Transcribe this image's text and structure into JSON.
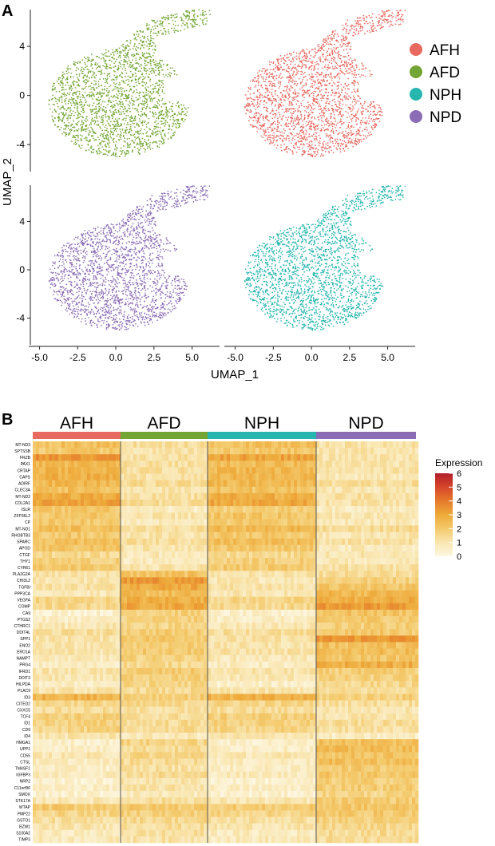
{
  "panel_a": {
    "letter": "A",
    "colors": {
      "AFH": "#e8695f",
      "AFD": "#73a534",
      "NPH": "#26b6ae",
      "NPD": "#8b6db5"
    }
  },
  "panel_b": {
    "letter": "B"
  },
  "chart_data": [
    {
      "type": "scatter",
      "xlabel": "UMAP_1",
      "ylabel": "UMAP_2",
      "x_ticks": [
        "-5.0",
        "-2.5",
        "0.0",
        "2.5",
        "5.0"
      ],
      "y_ticks": [
        "4",
        "0",
        "-4"
      ],
      "xlim": [
        -5.5,
        6.8
      ],
      "ylim": [
        -6.2,
        7.0
      ],
      "facets": [
        {
          "series": "AFD",
          "row": 0,
          "col": 0
        },
        {
          "series": "AFH",
          "row": 0,
          "col": 1
        },
        {
          "series": "NPD",
          "row": 1,
          "col": 0
        },
        {
          "series": "NPH",
          "row": 1,
          "col": 1
        }
      ],
      "legend": {
        "placement": "right",
        "entries": [
          {
            "name": "AFH",
            "color": "#e8695f"
          },
          {
            "name": "AFD",
            "color": "#73a534"
          },
          {
            "name": "NPH",
            "color": "#26b6ae"
          },
          {
            "name": "NPD",
            "color": "#8b6db5"
          }
        ]
      }
    },
    {
      "type": "heatmap",
      "groups": [
        {
          "name": "AFH",
          "color": "#e8695f"
        },
        {
          "name": "AFD",
          "color": "#73a534"
        },
        {
          "name": "NPH",
          "color": "#26b6ae"
        },
        {
          "name": "NPD",
          "color": "#8b6db5"
        }
      ],
      "genes": [
        "MT-ND3",
        "SPTSSB",
        "FRZB",
        "PAX1",
        "CRTAP",
        "CAPS",
        "ADIRF",
        "CLEC3A",
        "MT-ND2",
        "COL2A1",
        "ISLR",
        "ZFP36L2",
        "CP",
        "MT-ND1",
        "RHOBTB3",
        "SPARC",
        "APOD",
        "CTGF",
        "THY1",
        "CYR61",
        "PLA2G2A",
        "CHI3L2",
        "TGFBI",
        "PPP3CA",
        "VEGFA",
        "COMP",
        "CA9",
        "PTGS2",
        "CTHRC1",
        "DDIT4L",
        "SPP1",
        "ENO2",
        "ERO1A",
        "NAMPT",
        "PRG4",
        "IFRD1",
        "DDIT3",
        "HILPDA",
        "PLAC9",
        "ID3",
        "CITED2",
        "CXXC5",
        "TCF4",
        "ID1",
        "CD9",
        "ID4",
        "HMGA1",
        "UPP1",
        "CD55",
        "CTSL",
        "TM4SF1",
        "IGFBP3",
        "NRP2",
        "C11orf96",
        "SMOX",
        "STK17A",
        "WTAP",
        "PMP22",
        "GSTO1",
        "BZW1",
        "S100A2",
        "TIMP3"
      ],
      "values": [
        [
          2.3,
          1.3,
          2.3,
          1.1
        ],
        [
          2.0,
          1.0,
          2.0,
          1.0
        ],
        [
          3.4,
          1.1,
          3.1,
          1.0
        ],
        [
          2.5,
          1.2,
          2.4,
          1.0
        ],
        [
          2.6,
          1.2,
          2.6,
          1.1
        ],
        [
          2.8,
          1.1,
          2.6,
          0.8
        ],
        [
          2.6,
          1.4,
          2.5,
          1.3
        ],
        [
          2.3,
          1.0,
          2.2,
          0.9
        ],
        [
          2.9,
          1.2,
          2.8,
          1.2
        ],
        [
          3.2,
          1.3,
          3.0,
          1.1
        ],
        [
          2.0,
          0.6,
          1.8,
          0.7
        ],
        [
          2.1,
          1.0,
          2.1,
          0.9
        ],
        [
          2.0,
          0.7,
          1.9,
          0.8
        ],
        [
          2.4,
          1.3,
          2.5,
          1.4
        ],
        [
          2.0,
          1.0,
          2.0,
          0.9
        ],
        [
          2.3,
          1.3,
          2.3,
          1.2
        ],
        [
          2.1,
          1.0,
          2.0,
          0.8
        ],
        [
          1.5,
          0.8,
          1.5,
          0.9
        ],
        [
          1.8,
          0.7,
          1.8,
          0.8
        ],
        [
          2.0,
          1.0,
          2.0,
          1.2
        ],
        [
          1.1,
          2.2,
          1.0,
          1.3
        ],
        [
          1.0,
          3.3,
          0.9,
          1.8
        ],
        [
          1.2,
          3.0,
          1.1,
          2.1
        ],
        [
          0.9,
          2.4,
          0.9,
          2.6
        ],
        [
          1.6,
          2.8,
          1.6,
          2.8
        ],
        [
          1.5,
          3.0,
          1.5,
          3.3
        ],
        [
          0.4,
          1.8,
          0.4,
          2.2
        ],
        [
          0.6,
          1.7,
          0.6,
          2.0
        ],
        [
          0.9,
          1.6,
          0.9,
          1.8
        ],
        [
          1.3,
          1.9,
          1.3,
          2.0
        ],
        [
          1.1,
          2.1,
          1.1,
          3.4
        ],
        [
          1.0,
          1.9,
          1.0,
          2.3
        ],
        [
          1.1,
          2.0,
          1.1,
          2.4
        ],
        [
          0.8,
          1.7,
          0.8,
          2.1
        ],
        [
          0.6,
          1.5,
          0.6,
          2.8
        ],
        [
          1.0,
          1.9,
          1.0,
          1.8
        ],
        [
          0.9,
          1.8,
          0.9,
          1.7
        ],
        [
          0.6,
          1.6,
          0.5,
          1.5
        ],
        [
          1.0,
          1.4,
          1.0,
          1.3
        ],
        [
          2.7,
          1.9,
          2.7,
          1.8
        ],
        [
          1.6,
          1.5,
          1.6,
          1.3
        ],
        [
          1.3,
          1.2,
          1.3,
          1.0
        ],
        [
          1.8,
          1.3,
          1.8,
          1.0
        ],
        [
          1.7,
          1.4,
          1.7,
          1.3
        ],
        [
          1.6,
          1.4,
          1.6,
          1.2
        ],
        [
          1.0,
          0.8,
          1.0,
          0.6
        ],
        [
          0.5,
          1.6,
          0.5,
          2.3
        ],
        [
          0.6,
          1.4,
          0.6,
          2.4
        ],
        [
          0.9,
          1.6,
          0.9,
          2.2
        ],
        [
          0.7,
          1.4,
          0.7,
          2.3
        ],
        [
          0.6,
          1.2,
          0.6,
          2.0
        ],
        [
          0.8,
          1.4,
          0.8,
          2.1
        ],
        [
          0.4,
          1.0,
          0.4,
          1.8
        ],
        [
          0.6,
          1.1,
          0.6,
          1.9
        ],
        [
          0.4,
          0.8,
          0.4,
          1.6
        ],
        [
          0.9,
          1.3,
          0.9,
          1.9
        ],
        [
          2.0,
          2.0,
          1.9,
          2.1
        ],
        [
          1.6,
          1.8,
          1.6,
          2.0
        ],
        [
          1.2,
          1.5,
          1.2,
          1.7
        ],
        [
          1.0,
          1.3,
          1.0,
          1.5
        ],
        [
          0.7,
          1.2,
          0.7,
          1.4
        ],
        [
          0.8,
          1.1,
          0.8,
          1.3
        ]
      ],
      "colorbar": {
        "title": "Expression",
        "ticks": [
          "6",
          "5",
          "4",
          "3",
          "2",
          "1",
          "0"
        ],
        "range": [
          0,
          6
        ]
      }
    }
  ]
}
